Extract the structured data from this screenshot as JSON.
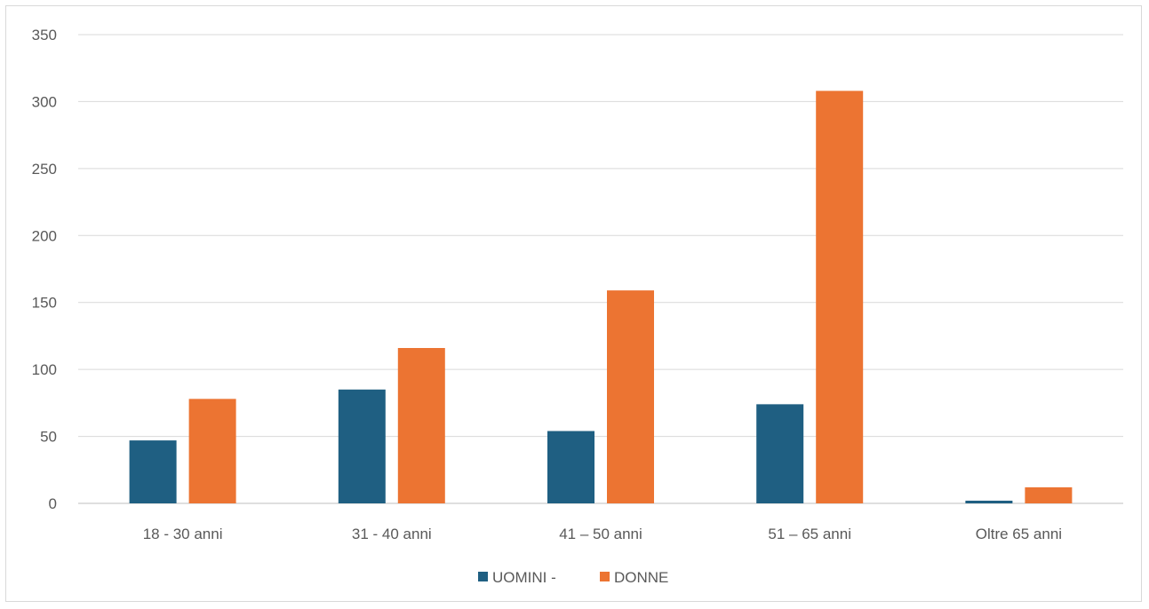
{
  "chart_data": {
    "type": "bar",
    "categories": [
      "18 - 30 anni",
      "31 - 40 anni",
      "41 – 50 anni",
      "51 – 65 anni",
      "Oltre 65 anni"
    ],
    "series": [
      {
        "name": "UOMINI -",
        "color": "#1f5f82",
        "values": [
          47,
          85,
          54,
          74,
          2
        ]
      },
      {
        "name": "DONNE",
        "color": "#ec7432",
        "values": [
          78,
          116,
          159,
          308,
          12
        ]
      }
    ],
    "ylim": [
      0,
      350
    ],
    "yticks": [
      0,
      50,
      100,
      150,
      200,
      250,
      300,
      350
    ],
    "grid": true,
    "legend": "bottom"
  }
}
